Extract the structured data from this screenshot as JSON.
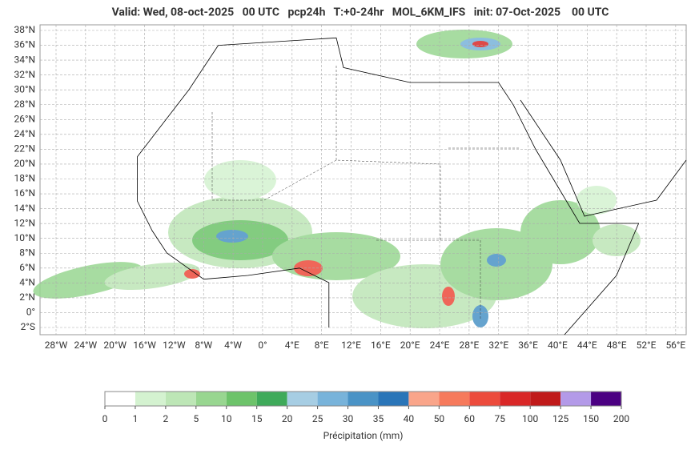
{
  "title": "Valid: Wed, 08-oct-2025   00 UTC   pcp24h   T:+0-24hr   MOL_6KM_IFS   init: 07-Oct-2025    00 UTC",
  "latitude_labels": [
    "38°N",
    "36°N",
    "34°N",
    "32°N",
    "30°N",
    "28°N",
    "26°N",
    "24°N",
    "22°N",
    "20°N",
    "18°N",
    "16°N",
    "14°N",
    "12°N",
    "10°N",
    "8°N",
    "6°N",
    "4°N",
    "2°N",
    "0°",
    "2°S"
  ],
  "longitude_labels": [
    "28°W",
    "24°W",
    "20°W",
    "16°W",
    "12°W",
    "8°W",
    "4°W",
    "0°",
    "4°E",
    "8°E",
    "12°E",
    "16°E",
    "20°E",
    "24°E",
    "28°E",
    "32°E",
    "36°E",
    "40°E",
    "44°E",
    "48°E",
    "52°E",
    "56°E"
  ],
  "colorbar": {
    "ticks": [
      0,
      1,
      2,
      5,
      10,
      15,
      20,
      25,
      30,
      35,
      40,
      50,
      60,
      75,
      100,
      125,
      150,
      200
    ],
    "colors": [
      "#ffffff",
      "#d4f2d0",
      "#bde6b6",
      "#98d690",
      "#6dc36a",
      "#3faa5a",
      "#a6cde3",
      "#78b3da",
      "#4a93c6",
      "#2a75b8",
      "#f9a58a",
      "#f67a5c",
      "#ec4b3c",
      "#d92727",
      "#c01a1a",
      "#b39ae8",
      "#4b0082"
    ],
    "label": "Précipitation (mm)"
  }
}
